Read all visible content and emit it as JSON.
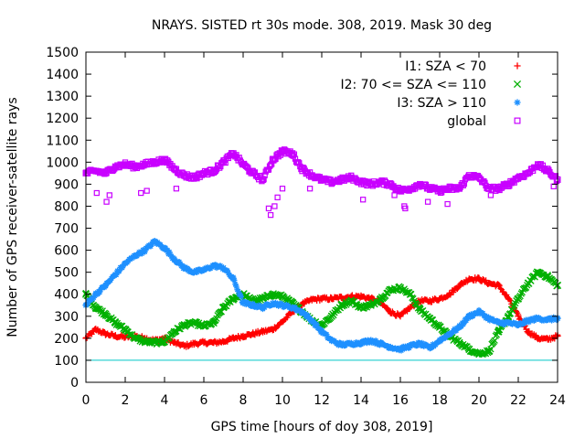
{
  "chart_data": {
    "type": "scatter",
    "title": "NRAYS. SISTED rt 30s mode. 308, 2019. Mask 30 deg",
    "xlabel": "GPS time [hours of doy 308, 2019]",
    "ylabel": "Number of GPS receiver-satellite rays",
    "xlim": [
      0,
      24
    ],
    "ylim": [
      0,
      1500
    ],
    "xticks": [
      0,
      2,
      4,
      6,
      8,
      10,
      12,
      14,
      16,
      18,
      20,
      22,
      24
    ],
    "yticks": [
      0,
      100,
      200,
      300,
      400,
      500,
      600,
      700,
      800,
      900,
      1000,
      1100,
      1200,
      1300,
      1400,
      1500
    ],
    "reference_line": {
      "y": 100,
      "color": "#00c8c8"
    },
    "legend_position": "top-right",
    "series": [
      {
        "name": "I1: SZA < 70",
        "color": "#ff0000",
        "marker": "plus",
        "x": [
          0,
          0.5,
          1,
          1.5,
          2,
          2.5,
          3,
          3.5,
          4,
          4.5,
          5,
          5.5,
          6,
          6.5,
          7,
          7.5,
          8,
          8.5,
          9,
          9.5,
          10,
          10.5,
          11,
          11.5,
          12,
          12.5,
          13,
          13.5,
          14,
          14.5,
          15,
          15.5,
          16,
          16.5,
          17,
          17.5,
          18,
          18.5,
          19,
          19.5,
          20,
          20.5,
          21,
          21.5,
          22,
          22.5,
          23,
          23.5,
          24
        ],
        "y": [
          200,
          240,
          220,
          210,
          205,
          210,
          200,
          190,
          200,
          180,
          165,
          175,
          180,
          180,
          185,
          200,
          210,
          220,
          230,
          240,
          275,
          320,
          355,
          375,
          380,
          380,
          385,
          390,
          390,
          380,
          360,
          320,
          300,
          340,
          370,
          370,
          380,
          400,
          440,
          470,
          470,
          450,
          440,
          380,
          300,
          230,
          200,
          195,
          210
        ]
      },
      {
        "name": "I2: 70 <= SZA <= 110",
        "color": "#00b000",
        "marker": "x",
        "x": [
          0,
          0.5,
          1,
          1.5,
          2,
          2.5,
          3,
          3.5,
          4,
          4.5,
          5,
          5.5,
          6,
          6.5,
          7,
          7.5,
          8,
          8.5,
          9,
          9.5,
          10,
          10.5,
          11,
          11.5,
          12,
          12.5,
          13,
          13.5,
          14,
          14.5,
          15,
          15.5,
          16,
          16.5,
          17,
          17.5,
          18,
          18.5,
          19,
          19.5,
          20,
          20.5,
          21,
          21.5,
          22,
          22.5,
          23,
          23.5,
          24
        ],
        "y": [
          400,
          340,
          310,
          270,
          240,
          200,
          185,
          180,
          185,
          230,
          260,
          270,
          255,
          270,
          340,
          380,
          400,
          370,
          380,
          400,
          390,
          360,
          320,
          280,
          260,
          300,
          350,
          370,
          340,
          350,
          380,
          420,
          430,
          400,
          330,
          290,
          250,
          210,
          180,
          150,
          130,
          140,
          230,
          300,
          380,
          450,
          500,
          480,
          440
        ]
      },
      {
        "name": "I3: SZA > 110",
        "color": "#1e90ff",
        "marker": "star",
        "x": [
          0,
          0.5,
          1,
          1.5,
          2,
          2.5,
          3,
          3.5,
          4,
          4.5,
          5,
          5.5,
          6,
          6.5,
          7,
          7.5,
          8,
          8.5,
          9,
          9.5,
          10,
          10.5,
          11,
          11.5,
          12,
          12.5,
          13,
          13.5,
          14,
          14.5,
          15,
          15.5,
          16,
          16.5,
          17,
          17.5,
          18,
          18.5,
          19,
          19.5,
          20,
          20.5,
          21,
          21.5,
          22,
          22.5,
          23,
          23.5,
          24
        ],
        "y": [
          350,
          400,
          440,
          490,
          540,
          575,
          600,
          640,
          610,
          560,
          520,
          500,
          510,
          530,
          520,
          470,
          360,
          350,
          340,
          360,
          350,
          340,
          320,
          280,
          230,
          190,
          170,
          175,
          180,
          190,
          175,
          160,
          150,
          165,
          175,
          155,
          190,
          220,
          250,
          300,
          320,
          290,
          270,
          270,
          260,
          280,
          290,
          285,
          290
        ]
      },
      {
        "name": "global",
        "color": "#c800ff",
        "marker": "square",
        "x": [
          0,
          0.5,
          1,
          1.5,
          2,
          2.5,
          3,
          3.5,
          4,
          4.5,
          5,
          5.5,
          6,
          6.5,
          7,
          7.5,
          8,
          8.5,
          9,
          9.5,
          10,
          10.5,
          11,
          11.5,
          12,
          12.5,
          13,
          13.5,
          14,
          14.5,
          15,
          15.5,
          16,
          16.5,
          17,
          17.5,
          18,
          18.5,
          19,
          19.5,
          20,
          20.5,
          21,
          21.5,
          22,
          22.5,
          23,
          23.5,
          24
        ],
        "y": [
          950,
          960,
          950,
          980,
          990,
          980,
          990,
          1000,
          1010,
          970,
          940,
          930,
          950,
          960,
          1000,
          1040,
          990,
          950,
          920,
          1010,
          1050,
          1040,
          970,
          940,
          920,
          910,
          920,
          930,
          910,
          900,
          910,
          900,
          870,
          880,
          900,
          880,
          870,
          880,
          880,
          940,
          930,
          880,
          880,
          900,
          930,
          950,
          990,
          960,
          920
        ]
      }
    ]
  }
}
